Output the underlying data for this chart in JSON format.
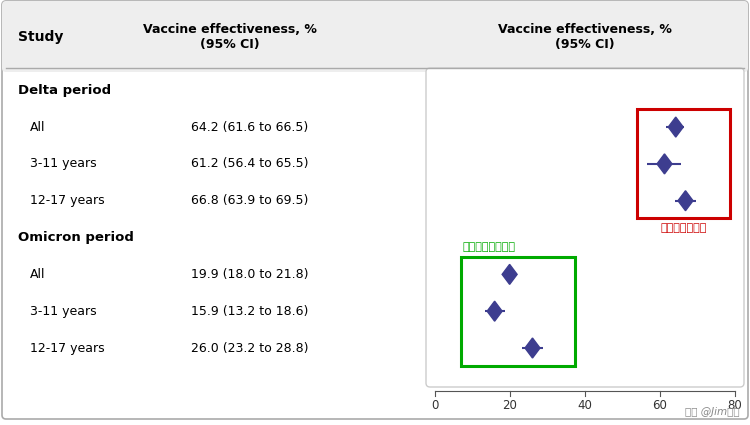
{
  "header_col1": "Study",
  "header_col2": "Vaccine effectiveness, %\n(95% CI)",
  "header_col3": "Vaccine effectiveness, %\n(95% CI)",
  "groups": [
    {
      "name": "Delta period",
      "rows": [
        {
          "label": "All",
          "text": "64.2 (61.6 to 66.5)",
          "point": 64.2,
          "lo": 61.6,
          "hi": 66.5
        },
        {
          "label": "3-11 years",
          "text": "61.2 (56.4 to 65.5)",
          "point": 61.2,
          "lo": 56.4,
          "hi": 65.5
        },
        {
          "label": "12-17 years",
          "text": "66.8 (63.9 to 69.5)",
          "point": 66.8,
          "lo": 63.9,
          "hi": 69.5
        }
      ]
    },
    {
      "name": "Omicron period",
      "rows": [
        {
          "label": "All",
          "text": "19.9 (18.0 to 21.8)",
          "point": 19.9,
          "lo": 18.0,
          "hi": 21.8
        },
        {
          "label": "3-11 years",
          "text": "15.9 (13.2 to 18.6)",
          "point": 15.9,
          "lo": 13.2,
          "hi": 18.6
        },
        {
          "label": "12-17 years",
          "text": "26.0 (23.2 to 28.8)",
          "point": 26.0,
          "lo": 23.2,
          "hi": 28.8
        }
      ]
    }
  ],
  "xmin": 0,
  "xmax": 80,
  "xticks": [
    0,
    20,
    40,
    60,
    80
  ],
  "point_color": "#3d3d8f",
  "delta_box_color": "#cc0000",
  "omicron_box_color": "#00aa00",
  "delta_label_cn": "预防德尔塔感染",
  "omicron_label_cn": "预防奥密克戴感染",
  "watermark": "头条 @Jim博士",
  "bg_color": "#ffffff"
}
